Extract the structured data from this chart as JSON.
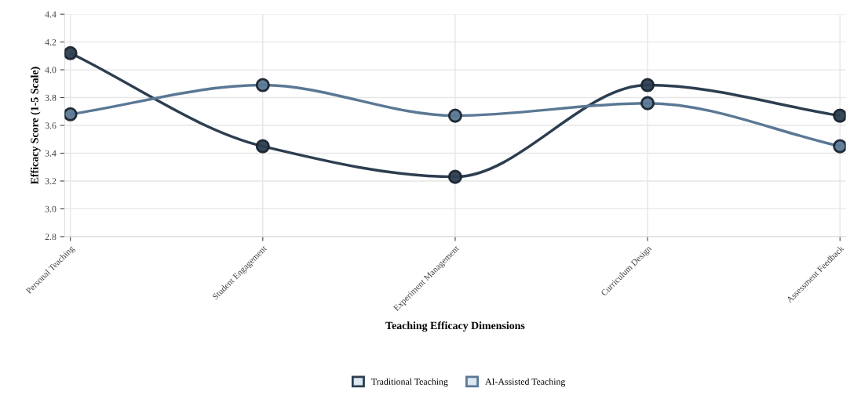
{
  "chart_data": {
    "type": "line",
    "xlabel": "Teaching Efficacy Dimensions",
    "ylabel": "Efficacy Score (1-5 Scale)",
    "categories": [
      "Personal Teaching",
      "Student Engagement",
      "Experiment Management",
      "Curriculum Design",
      "Assessment Feedback"
    ],
    "series": [
      {
        "name": "Traditional Teaching",
        "color": "#2c3e50",
        "values": [
          4.12,
          3.45,
          3.23,
          3.89,
          3.67
        ]
      },
      {
        "name": "AI-Assisted Teaching",
        "color": "#5b7895",
        "values": [
          3.68,
          3.89,
          3.67,
          3.76,
          3.45
        ]
      }
    ],
    "ylim": [
      2.8,
      4.4
    ],
    "yticks": [
      {
        "value": 2.8,
        "label": "2.8"
      },
      {
        "value": 3.0,
        "label": "3.0"
      },
      3.2,
      3.4,
      3.6,
      3.8,
      {
        "value": 4.0,
        "label": "4.0"
      },
      4.2,
      4.4
    ],
    "grid": true,
    "legend": "bottom",
    "marker": "circle",
    "line_style": "solid"
  }
}
